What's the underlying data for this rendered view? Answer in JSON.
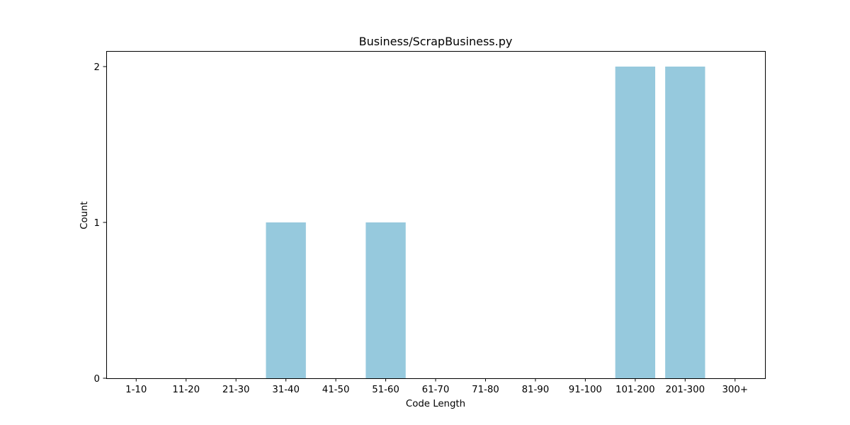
{
  "chart_data": {
    "type": "bar",
    "title": "Business/ScrapBusiness.py",
    "xlabel": "Code Length",
    "ylabel": "Count",
    "categories": [
      "1-10",
      "11-20",
      "21-30",
      "31-40",
      "41-50",
      "51-60",
      "61-70",
      "71-80",
      "81-90",
      "91-100",
      "101-200",
      "201-300",
      "300+"
    ],
    "values": [
      0,
      0,
      0,
      1,
      0,
      1,
      0,
      0,
      0,
      0,
      2,
      2,
      0
    ],
    "yticks": [
      0,
      1,
      2
    ],
    "ylim": [
      0,
      2.1
    ],
    "bar_color": "#96c9dd",
    "grid": false,
    "legend": false
  }
}
